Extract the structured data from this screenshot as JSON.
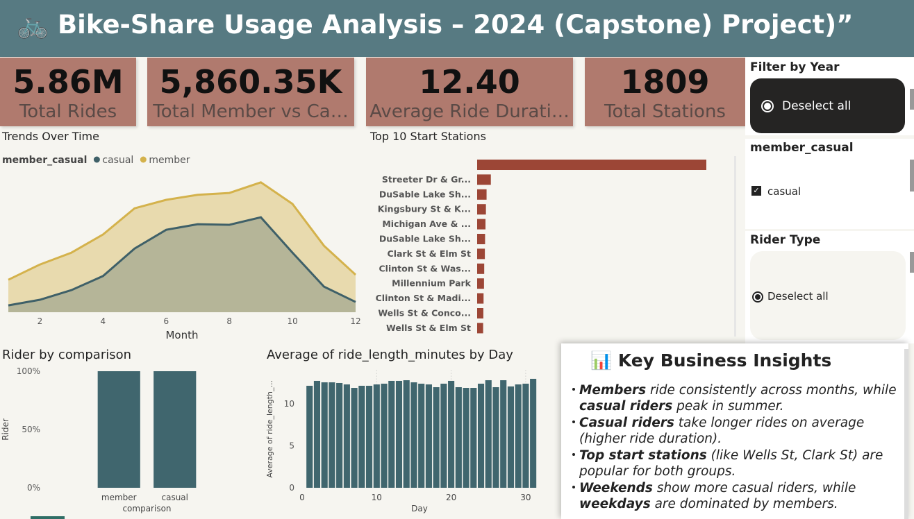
{
  "header": {
    "title": "🚲 Bike-Share Usage Analysis – 2024 (Capstone) Project)”"
  },
  "kpis": [
    {
      "value": "5.86M",
      "label": "Total Rides"
    },
    {
      "value": "5,860.35K",
      "label": "Total Member vs Ca…"
    },
    {
      "value": "12.40",
      "label": "Average Ride Durati…"
    },
    {
      "value": "1809",
      "label": "Total Stations"
    }
  ],
  "chart_data": [
    {
      "type": "area",
      "title": "Trends Over Time",
      "legend_title": "member_casual",
      "x": [
        1,
        2,
        3,
        4,
        5,
        6,
        7,
        8,
        9,
        10,
        11,
        12
      ],
      "xlim": [
        1,
        12
      ],
      "xticks": [
        2,
        4,
        6,
        8,
        10,
        12
      ],
      "xlabel": "Month",
      "ylim": [
        0,
        500000
      ],
      "series": [
        {
          "name": "casual",
          "color": "#3f6068",
          "values": [
            22000,
            40000,
            71000,
            116000,
            204000,
            264000,
            282000,
            280000,
            304000,
            191000,
            82000,
            33000
          ]
        },
        {
          "name": "member",
          "color": "#d4b24c",
          "values": [
            104000,
            153000,
            191000,
            249000,
            333000,
            360000,
            376000,
            382000,
            416000,
            347000,
            213000,
            120000
          ]
        }
      ]
    },
    {
      "type": "hbar",
      "title": "Top 10 Start Stations",
      "categories": [
        null,
        "Streeter Dr & Gr...",
        "DuSable Lake Sh...",
        "Kingsbury St & K...",
        "Michigan Ave & ...",
        "DuSable Lake Sh...",
        "Clark St & Elm St",
        "Clinton St & Was...",
        "Millennium Park",
        "Clinton St & Madi...",
        "Wells St & Conco...",
        "Wells St & Elm St"
      ],
      "values": [
        1070000,
        64000,
        44000,
        41000,
        39000,
        37000,
        36000,
        33000,
        32000,
        30000,
        29000,
        28000
      ],
      "xlim": [
        0,
        1070000
      ],
      "color": "#9c4636"
    },
    {
      "type": "bar",
      "title": "Rider by comparison",
      "categories": [
        "member",
        "casual"
      ],
      "values": [
        100,
        100
      ],
      "ylim": [
        0,
        100
      ],
      "yticks": [
        {
          "value": 0,
          "label": "0%"
        },
        {
          "value": 50,
          "label": "50%"
        },
        {
          "value": 100,
          "label": "100%"
        }
      ],
      "ylabel": "Rider",
      "xlabel": "comparison",
      "color": "#40666e"
    },
    {
      "type": "column",
      "title": "Average of ride_length_minutes by Day",
      "x": [
        1,
        2,
        3,
        4,
        5,
        6,
        7,
        8,
        9,
        10,
        11,
        12,
        13,
        14,
        15,
        16,
        17,
        18,
        19,
        20,
        21,
        22,
        23,
        24,
        25,
        26,
        27,
        28,
        29,
        30,
        31
      ],
      "values": [
        12.15,
        12.73,
        12.56,
        12.56,
        12.48,
        12.31,
        11.9,
        12.15,
        12.15,
        12.31,
        12.4,
        12.73,
        12.73,
        12.81,
        12.56,
        12.4,
        12.31,
        11.98,
        12.4,
        12.73,
        11.98,
        11.9,
        11.9,
        12.4,
        12.81,
        11.98,
        12.81,
        12.07,
        12.31,
        12.4,
        12.98
      ],
      "xlim": [
        0,
        31.5
      ],
      "xticks": [
        0,
        10,
        20,
        30
      ],
      "ylim": [
        0,
        14
      ],
      "yticks": [
        0,
        5,
        10
      ],
      "ylabel": "Average of ride_length_...",
      "xlabel": "Day",
      "color": "#40666e",
      "grid": true
    }
  ],
  "slicers": [
    {
      "title": "Filter by Year",
      "option": "Deselect all"
    },
    {
      "title": "member_casual",
      "option": "casual"
    },
    {
      "title": "Rider Type",
      "option": "Deselect all"
    }
  ],
  "insights": {
    "title": "📊 Key Business Insights",
    "bullets": [
      [
        {
          "text": "Members",
          "bold": true
        },
        {
          "text": " ride consistently across months, while "
        },
        {
          "text": "casual riders",
          "bold": true
        },
        {
          "text": " peak in summer."
        }
      ],
      [
        {
          "text": "Casual riders",
          "bold": true
        },
        {
          "text": " take longer rides on average (higher ride duration)."
        }
      ],
      [
        {
          "text": "Top start stations",
          "bold": true
        },
        {
          "text": " (like Wells St, Clark St) are popular for both groups."
        }
      ],
      [
        {
          "text": "Weekends",
          "bold": true
        },
        {
          "text": " show more casual riders, while "
        },
        {
          "text": "weekdays",
          "bold": true
        },
        {
          "text": " are dominated by members."
        }
      ]
    ]
  }
}
